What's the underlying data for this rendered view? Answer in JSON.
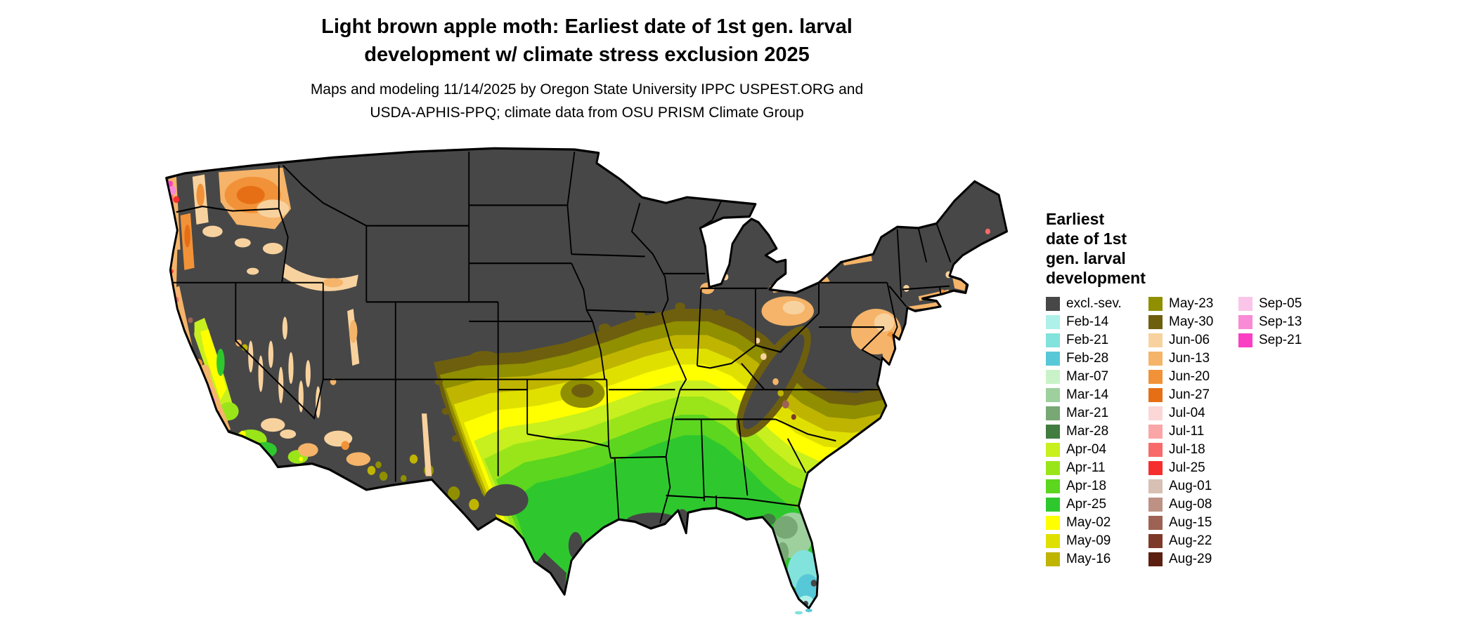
{
  "title": {
    "line1": "Light brown apple moth: Earliest date of 1st gen. larval",
    "line2": "development w/ climate stress exclusion 2025"
  },
  "subtitle": {
    "line1": "Maps and modeling 11/14/2025 by Oregon State University IPPC USPEST.ORG and",
    "line2": "USDA-APHIS-PPQ; climate data from OSU PRISM Climate Group"
  },
  "legend": {
    "title_lines": [
      "Earliest",
      "date of 1st",
      "gen. larval",
      "development"
    ],
    "columns": [
      [
        {
          "label": "excl.-sev.",
          "color": "#474747"
        },
        {
          "label": "Feb-14",
          "color": "#aef0ea"
        },
        {
          "label": "Feb-21",
          "color": "#82e2dc"
        },
        {
          "label": "Feb-28",
          "color": "#57c8d8"
        },
        {
          "label": "Mar-07",
          "color": "#c9f2c9"
        },
        {
          "label": "Mar-14",
          "color": "#9ed09e"
        },
        {
          "label": "Mar-21",
          "color": "#78a874"
        },
        {
          "label": "Mar-28",
          "color": "#417c41"
        },
        {
          "label": "Apr-04",
          "color": "#c8ef1e"
        },
        {
          "label": "Apr-11",
          "color": "#9ae519"
        },
        {
          "label": "Apr-18",
          "color": "#5cd61e"
        },
        {
          "label": "Apr-25",
          "color": "#2ec82e"
        },
        {
          "label": "May-02",
          "color": "#ffff00"
        },
        {
          "label": "May-09",
          "color": "#e0e000"
        },
        {
          "label": "May-16",
          "color": "#bfb400"
        }
      ],
      [
        {
          "label": "May-23",
          "color": "#8f8f00"
        },
        {
          "label": "May-30",
          "color": "#6e5f0e"
        },
        {
          "label": "Jun-06",
          "color": "#f8d29e"
        },
        {
          "label": "Jun-13",
          "color": "#f5b469"
        },
        {
          "label": "Jun-20",
          "color": "#f29238"
        },
        {
          "label": "Jun-27",
          "color": "#e66f16"
        },
        {
          "label": "Jul-04",
          "color": "#fbd7d7"
        },
        {
          "label": "Jul-11",
          "color": "#faa6a6"
        },
        {
          "label": "Jul-18",
          "color": "#f86a6a"
        },
        {
          "label": "Jul-25",
          "color": "#f62e2e"
        },
        {
          "label": "Aug-01",
          "color": "#d8c0b4"
        },
        {
          "label": "Aug-08",
          "color": "#bd9184"
        },
        {
          "label": "Aug-15",
          "color": "#9d6253"
        },
        {
          "label": "Aug-22",
          "color": "#7d3a28"
        },
        {
          "label": "Aug-29",
          "color": "#5c1f10"
        }
      ],
      [
        {
          "label": "Sep-05",
          "color": "#fbc4e9"
        },
        {
          "label": "Sep-13",
          "color": "#f98ad6"
        },
        {
          "label": "Sep-21",
          "color": "#fa3fc4"
        }
      ]
    ]
  },
  "map": {
    "excluded_color": "#474747",
    "state_border_color": "#000000",
    "zones": [
      {
        "area": "Northern US, Rockies, upper Midwest, interior Northeast",
        "value": "excl.-sev."
      },
      {
        "area": "Columbia Basin and Pacific Northwest valleys",
        "value": "Jun-06 to Jun-27"
      },
      {
        "area": "Pacific coastline strip",
        "value": "Jul-04 to Sep-21"
      },
      {
        "area": "California Central Valley and Southern California",
        "value": "Apr-04 to May-02"
      },
      {
        "area": "Southern Plains through Southeast, banded north to south",
        "value": "May-30 to Apr-25"
      },
      {
        "area": "Gulf Coast, south Georgia and north Florida",
        "value": "Apr-18 to Apr-25"
      },
      {
        "area": "Central Florida",
        "value": "Mar-07 to Mar-28"
      },
      {
        "area": "South Florida",
        "value": "Feb-14 to Feb-28"
      },
      {
        "area": "Mid-Atlantic coastal plain and Lake Erie shore",
        "value": "Jun-06 to Jun-13"
      },
      {
        "area": "South Texas tip, Louisiana delta, Appalachian ridges",
        "value": "excl.-sev."
      }
    ]
  }
}
